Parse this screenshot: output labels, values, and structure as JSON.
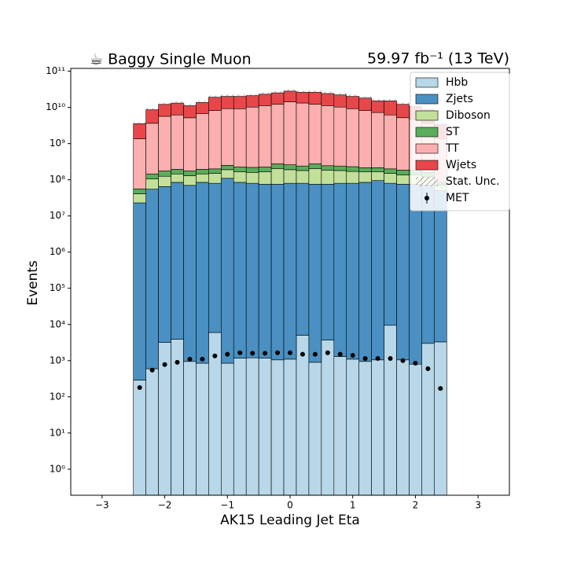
{
  "chart_data": {
    "type": "histogram",
    "title": "☕ Baggy Single Muon",
    "subtitle": "59.97 fb⁻¹ (13 TeV)",
    "x_label": "AK15 Leading Jet Eta",
    "y_label": "Events",
    "log_y": true,
    "legend": "upper right",
    "bins": [
      -2.5,
      -2.3,
      -2.1,
      -1.9,
      -1.7,
      -1.5,
      -1.3,
      -1.1,
      -0.9,
      -0.7,
      -0.5,
      -0.3,
      -0.1,
      0.1,
      0.3,
      0.5,
      0.7,
      0.9,
      1.1,
      1.3,
      1.5,
      1.7,
      1.9,
      2.1,
      2.3,
      2.5
    ],
    "xlim": [
      -3.5,
      3.5
    ],
    "xticks": [
      {
        "value": -3,
        "label": "−3"
      },
      {
        "value": -2,
        "label": "−2"
      },
      {
        "value": -1,
        "label": "−1"
      },
      0,
      1,
      2,
      3
    ],
    "ylim": [
      0.19,
      120000000000.0
    ],
    "yticks": [
      {
        "value": 1,
        "label": "10⁰"
      },
      {
        "value": 10,
        "label": "10¹"
      },
      {
        "value": 100,
        "label": "10²"
      },
      {
        "value": 1000,
        "label": "10³"
      },
      {
        "value": 10000,
        "label": "10⁴"
      },
      {
        "value": 100000,
        "label": "10⁵"
      },
      {
        "value": 1000000,
        "label": "10⁶"
      },
      {
        "value": 10000000,
        "label": "10⁷"
      },
      {
        "value": 100000000,
        "label": "10⁸"
      },
      {
        "value": 1000000000,
        "label": "10⁹"
      },
      {
        "value": 10000000000,
        "label": "10¹⁰"
      },
      {
        "value": 100000000000,
        "label": "10¹¹"
      }
    ],
    "series": [
      {
        "name": "Hbb",
        "color": "#b8d7e8",
        "values": [
          290,
          600,
          3200,
          3900,
          950,
          850,
          6000,
          850,
          1170,
          1200,
          1170,
          1050,
          1100,
          5000,
          900,
          3700,
          1300,
          1100,
          950,
          1050,
          9500,
          1050,
          800,
          3000,
          3300
        ]
      },
      {
        "name": "Zjets",
        "color": "#4a90c2",
        "values": [
          23000000.0,
          55000000.0,
          65000000.0,
          85000000.0,
          70000000.0,
          85000000.0,
          80000000.0,
          110000000.0,
          85000000.0,
          80000000.0,
          75000000.0,
          75000000.0,
          80000000.0,
          80000000.0,
          75000000.0,
          75000000.0,
          80000000.0,
          80000000.0,
          85000000.0,
          95000000.0,
          80000000.0,
          75000000.0,
          75000000.0,
          70000000.0,
          50000000.0
        ]
      },
      {
        "name": "Diboson",
        "color": "#c2e09a",
        "values": [
          18000000.0,
          50000000.0,
          60000000.0,
          60000000.0,
          60000000.0,
          60000000.0,
          70000000.0,
          80000000.0,
          80000000.0,
          80000000.0,
          90000000.0,
          130000000.0,
          110000000.0,
          100000000.0,
          130000000.0,
          110000000.0,
          100000000.0,
          90000000.0,
          80000000.0,
          70000000.0,
          70000000.0,
          60000000.0,
          60000000.0,
          50000000.0,
          20000000.0
        ]
      },
      {
        "name": "ST",
        "color": "#5aad5a",
        "values": [
          15000000.0,
          40000000.0,
          50000000.0,
          50000000.0,
          45000000.0,
          50000000.0,
          50000000.0,
          60000000.0,
          60000000.0,
          60000000.0,
          60000000.0,
          70000000.0,
          70000000.0,
          60000000.0,
          70000000.0,
          60000000.0,
          60000000.0,
          60000000.0,
          50000000.0,
          50000000.0,
          50000000.0,
          50000000.0,
          50000000.0,
          40000000.0,
          15000000.0
        ]
      },
      {
        "name": "TT",
        "color": "#fbafaf",
        "values": [
          1300000000.0,
          3500000000.0,
          5500000000.0,
          6000000000.0,
          5000000000.0,
          6500000000.0,
          8000000000.0,
          9000000000.0,
          9000000000.0,
          10000000000.0,
          11000000000.0,
          12000000000.0,
          14000000000.0,
          13000000000.0,
          12000000000.0,
          11000000000.0,
          10000000000.0,
          9000000000.0,
          8000000000.0,
          7000000000.0,
          6000000000.0,
          5000000000.0,
          4500000000.0,
          3500000000.0,
          1300000000.0
        ]
      },
      {
        "name": "Wjets",
        "color": "#e8474a",
        "values": [
          2200000000.0,
          5000000000.0,
          6500000000.0,
          7000000000.0,
          6000000000.0,
          7000000000.0,
          11000000000.0,
          11000000000.0,
          11000000000.0,
          11000000000.0,
          12000000000.0,
          13000000000.0,
          14000000000.0,
          13000000000.0,
          14000000000.0,
          13000000000.0,
          12000000000.0,
          11000000000.0,
          10000000000.0,
          8000000000.0,
          9000000000.0,
          7000000000.0,
          6000000000.0,
          5000000000.0,
          2000000000.0
        ]
      }
    ],
    "uncertainty": {
      "name": "Stat. Unc."
    },
    "points": {
      "name": "MET",
      "color": "#000000",
      "x": [
        -2.4,
        -2.2,
        -2,
        -1.8,
        -1.6,
        -1.4,
        -1.2,
        -1,
        -0.8,
        -0.6,
        -0.4,
        -0.2,
        0,
        0.2,
        0.4,
        0.6,
        0.8,
        1,
        1.2,
        1.4,
        1.6,
        1.8,
        2,
        2.2,
        2.4
      ],
      "values": [
        180,
        550,
        780,
        900,
        1100,
        1100,
        1350,
        1500,
        1650,
        1600,
        1600,
        1650,
        1650,
        1500,
        1500,
        1650,
        1500,
        1400,
        1150,
        1150,
        1150,
        1000,
        850,
        600,
        170
      ]
    }
  }
}
